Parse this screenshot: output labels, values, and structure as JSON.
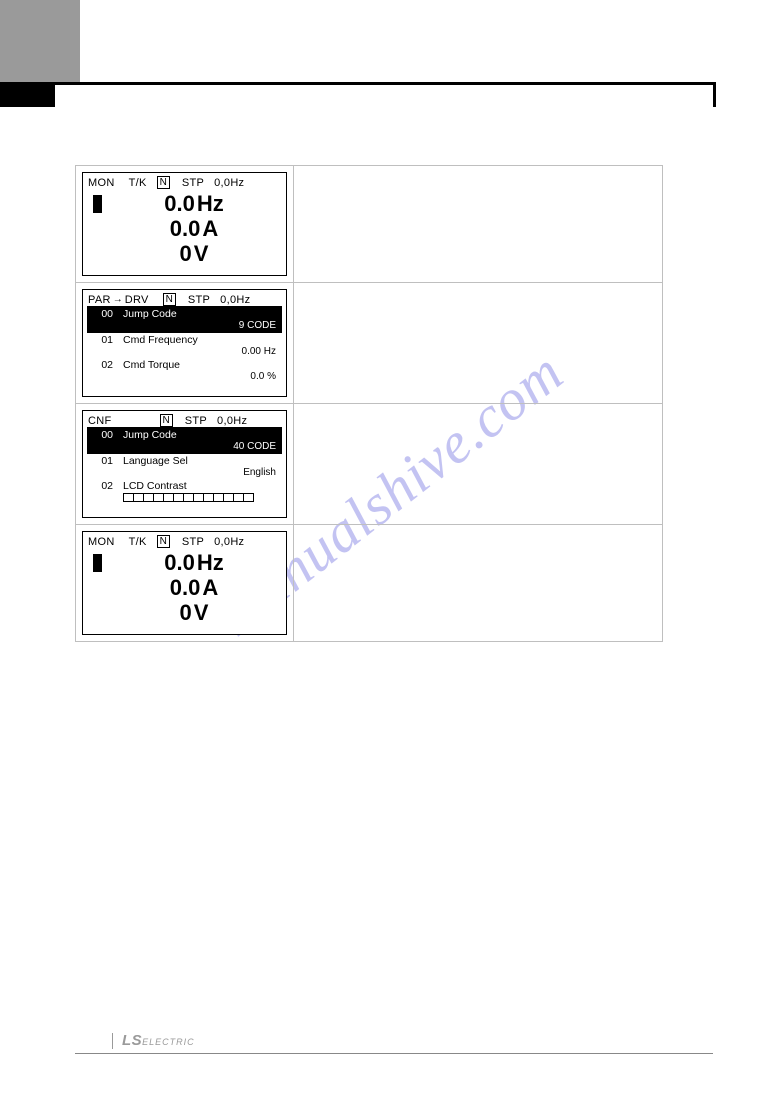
{
  "watermark": "manualshive.com",
  "footer_logo_main": "LS",
  "footer_logo_sub": "ELECTRIC",
  "panels": {
    "mon1": {
      "status": {
        "mode": "MON",
        "tk": "T/K",
        "n": "N",
        "state": "STP",
        "freq": "0,0Hz"
      },
      "lines": [
        {
          "val": "0.0",
          "unit": "Hz"
        },
        {
          "val": "0.0",
          "unit": "A"
        },
        {
          "val": "0",
          "unit": "V"
        }
      ]
    },
    "par": {
      "status": {
        "mode_from": "PAR",
        "mode_to": "DRV",
        "n": "N",
        "state": "STP",
        "freq": "0,0Hz"
      },
      "items": [
        {
          "code": "00",
          "label": "Jump Code",
          "value": "9 CODE",
          "selected": true
        },
        {
          "code": "01",
          "label": "Cmd Frequency",
          "value": "0.00 Hz",
          "selected": false
        },
        {
          "code": "02",
          "label": "Cmd Torque",
          "value": "0.0 %",
          "selected": false
        }
      ]
    },
    "cnf": {
      "status": {
        "mode": "CNF",
        "n": "N",
        "state": "STP",
        "freq": "0,0Hz"
      },
      "items": [
        {
          "code": "00",
          "label": "Jump Code",
          "value": "40 CODE",
          "selected": true
        },
        {
          "code": "01",
          "label": "Language Sel",
          "value": "English",
          "selected": false
        },
        {
          "code": "02",
          "label": "LCD Contrast",
          "value": "",
          "selected": false,
          "contrast_cells": 13
        }
      ]
    },
    "mon2": {
      "status": {
        "mode": "MON",
        "tk": "T/K",
        "n": "N",
        "state": "STP",
        "freq": "0,0Hz"
      },
      "lines": [
        {
          "val": "0.0",
          "unit": "Hz"
        },
        {
          "val": "0.0",
          "unit": "A"
        },
        {
          "val": "0",
          "unit": "V"
        }
      ]
    }
  }
}
